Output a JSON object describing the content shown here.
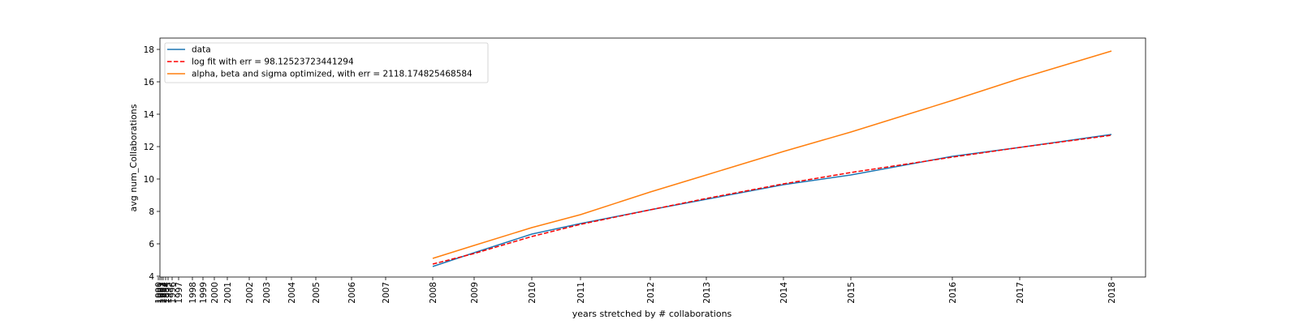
{
  "chart_data": {
    "type": "line",
    "title": "",
    "xlabel": "years stretched by # collaborations",
    "ylabel": "avg num_Collaborations",
    "ylim": [
      4,
      18.6
    ],
    "yticks": [
      4,
      6,
      8,
      10,
      12,
      14,
      16,
      18
    ],
    "x_tick_labels": [
      "1990",
      "1991",
      "1992",
      "1993",
      "1994",
      "1995",
      "1996",
      "1997",
      "1998",
      "1999",
      "2000",
      "2001",
      "2002",
      "2003",
      "2004",
      "2005",
      "2006",
      "2007",
      "2008",
      "2009",
      "2010",
      "2011",
      "2012",
      "2013",
      "2014",
      "2015",
      "2016",
      "2017",
      "2018"
    ],
    "x_categories": [
      "2008",
      "2009",
      "2010",
      "2011",
      "2012",
      "2013",
      "2014",
      "2015",
      "2016",
      "2017",
      "2018"
    ],
    "legend_position": "upper-left",
    "series": [
      {
        "name": "data",
        "color": "#1f77b4",
        "style": "solid",
        "values": [
          4.6,
          5.45,
          6.6,
          7.25,
          8.1,
          8.75,
          9.65,
          10.25,
          11.4,
          11.95,
          12.75
        ]
      },
      {
        "name": "log fit with err = 98.12523723441294",
        "color": "#ff0000",
        "style": "dashed",
        "values": [
          4.75,
          5.4,
          6.45,
          7.2,
          8.1,
          8.8,
          9.7,
          10.4,
          11.35,
          11.95,
          12.7
        ]
      },
      {
        "name": "alpha, beta and sigma optimized, with err = 2118.174825468584",
        "color": "#ff7f0e",
        "style": "solid",
        "values": [
          5.1,
          5.9,
          7.0,
          7.8,
          9.2,
          10.25,
          11.7,
          12.9,
          14.85,
          16.2,
          17.9
        ]
      }
    ]
  }
}
